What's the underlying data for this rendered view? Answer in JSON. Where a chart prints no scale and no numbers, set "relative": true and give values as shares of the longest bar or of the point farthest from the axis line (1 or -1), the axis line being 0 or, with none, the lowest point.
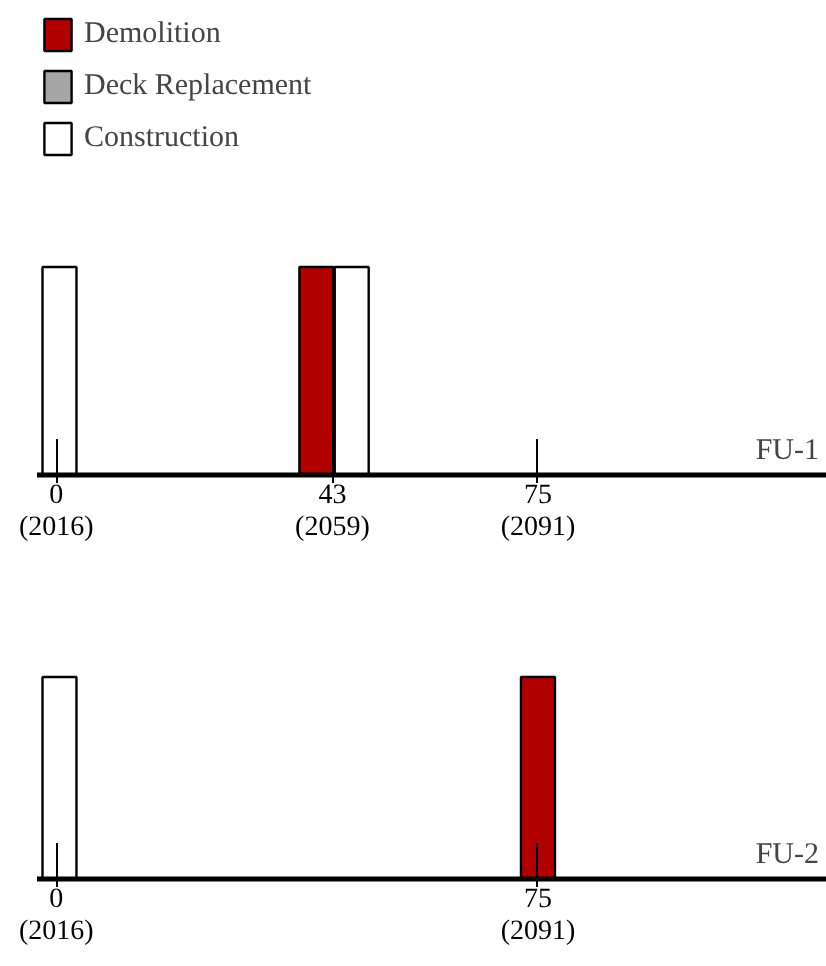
{
  "chart_data": [
    {
      "type": "bar",
      "title": "FU-1",
      "relative": true,
      "legend": "top left",
      "xlim": [
        -3,
        120
      ],
      "xticks": [
        0,
        43,
        75
      ],
      "annotations": [
        "(2016)",
        "(2059)",
        "(2091)"
      ],
      "series": [
        {
          "name": "Demolition",
          "color": "#b00000",
          "x": [
            40.5
          ],
          "values": [
            1
          ]
        },
        {
          "name": "Deck Replacement",
          "color": "#a6a6a6"
        },
        {
          "name": "Construction",
          "color": "#ffffff",
          "x": [
            0.5,
            46
          ],
          "values": [
            1,
            1
          ]
        }
      ]
    },
    {
      "type": "bar",
      "title": "FU-2",
      "relative": true,
      "xlim": [
        -3,
        120
      ],
      "xticks": [
        0,
        75
      ],
      "annotations": [
        "(2016)",
        "(2091)"
      ],
      "series": [
        {
          "color": "#ffffff",
          "x": [
            0.5
          ],
          "values": [
            1
          ]
        },
        {
          "color": "#b00000",
          "x": [
            75
          ],
          "values": [
            1
          ]
        }
      ]
    }
  ]
}
